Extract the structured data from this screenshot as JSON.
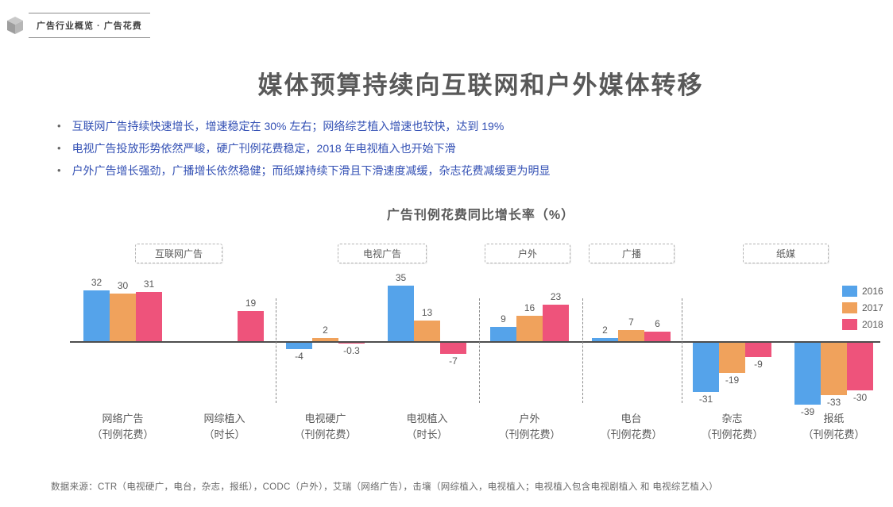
{
  "page": {
    "breadcrumb": "广告行业概览 · 广告花费",
    "title": "媒体预算持续向互联网和户外媒体转移",
    "bullets": [
      "互联网广告持续快速增长，增速稳定在 30% 左右；网络综艺植入增速也较快，达到 19%",
      "电视广告投放形势依然严峻，硬广刊例花费稳定，2018 年电视植入也开始下滑",
      "户外广告增长强劲，广播增长依然稳健；而纸媒持续下滑且下滑速度减缓，杂志花费减缓更为明显"
    ],
    "source": "数据来源：CTR（电视硬广，电台，杂志，报纸），CODC（户外），艾瑞（网络广告），击壤（网综植入，电视植入；电视植入包含电视剧植入 和 电视综艺植入）"
  },
  "chart_data": {
    "type": "bar",
    "title": "广告刊例花费同比增长率（%）",
    "legend": [
      "2016",
      "2017",
      "2018"
    ],
    "series_colors": [
      "#55A3EA",
      "#F0A25C",
      "#EE537B"
    ],
    "sections": [
      "互联网广告",
      "电视广告",
      "户外",
      "广播",
      "纸媒"
    ],
    "categories": [
      {
        "name": "网络广告",
        "sub": "（刊例花费）"
      },
      {
        "name": "网综植入",
        "sub": "（时长）"
      },
      {
        "name": "电视硬广",
        "sub": "（刊例花费）"
      },
      {
        "name": "电视植入",
        "sub": "（时长）"
      },
      {
        "name": "户外",
        "sub": "（刊例花费）"
      },
      {
        "name": "电台",
        "sub": "（刊例花费）"
      },
      {
        "name": "杂志",
        "sub": "（刊例花费）"
      },
      {
        "name": "报纸",
        "sub": "（刊例花费）"
      }
    ],
    "series": [
      {
        "name": "2016",
        "values": [
          32,
          null,
          -4,
          35,
          9,
          2,
          -31,
          -39
        ]
      },
      {
        "name": "2017",
        "values": [
          30,
          null,
          2,
          13,
          16,
          7,
          -19,
          -33
        ]
      },
      {
        "name": "2018",
        "values": [
          31,
          19,
          -0.3,
          -7,
          23,
          6,
          -9,
          -30
        ]
      }
    ],
    "ylim": [
      -45,
      40
    ],
    "grid": false,
    "legend_position": "right"
  }
}
